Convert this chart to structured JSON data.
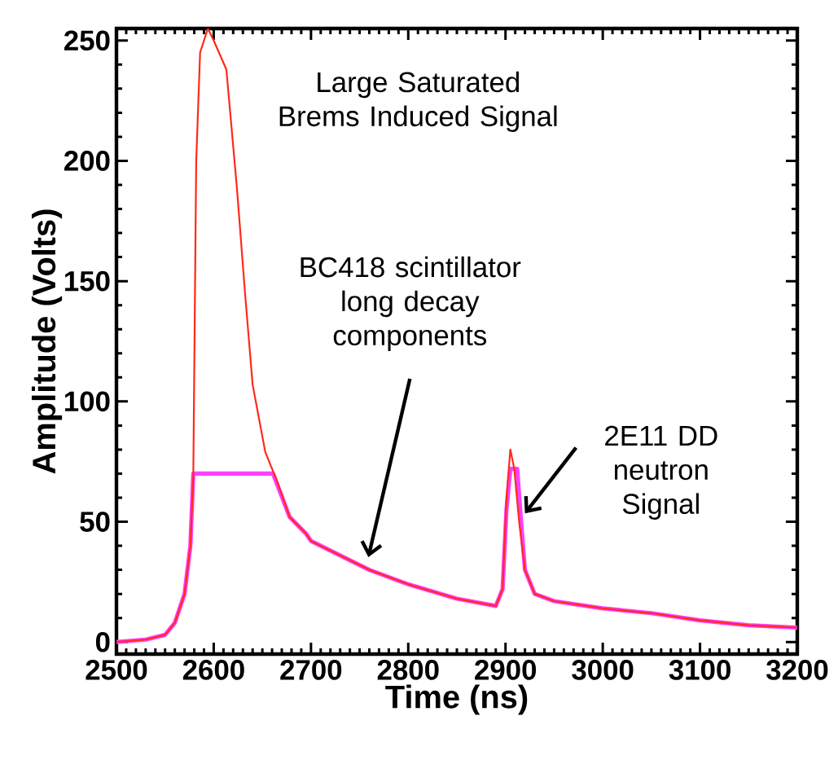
{
  "chart_data": {
    "type": "line",
    "xlabel": "Time (ns)",
    "ylabel": "Amplitude (Volts)",
    "xlim": [
      2500,
      3200
    ],
    "ylim": [
      -5,
      255
    ],
    "xticks": [
      2500,
      2600,
      2700,
      2800,
      2900,
      3000,
      3100,
      3200
    ],
    "yticks": [
      0,
      50,
      100,
      150,
      200,
      250
    ],
    "grid": false,
    "legend": false,
    "marker": "none",
    "line_style": "solid",
    "series": [
      {
        "color": "#ff2a1a",
        "x": [
          2500,
          2530,
          2550,
          2560,
          2570,
          2576,
          2579,
          2582,
          2586,
          2594,
          2600,
          2613,
          2624,
          2632,
          2640,
          2653,
          2665,
          2678,
          2695,
          2700,
          2740,
          2760,
          2800,
          2850,
          2890,
          2897,
          2901,
          2905,
          2909,
          2914,
          2920,
          2930,
          2950,
          3000,
          3050,
          3100,
          3150,
          3200
        ],
        "values": [
          0,
          1,
          3,
          8,
          20,
          40,
          69,
          200,
          245,
          255,
          250,
          238,
          188,
          146,
          107,
          79,
          67,
          52,
          45,
          42,
          34,
          30,
          24,
          18,
          15,
          22,
          60,
          80,
          72,
          50,
          30,
          20,
          17,
          14,
          12,
          9,
          7,
          6
        ]
      },
      {
        "color": "#ff40ff",
        "x": [
          2500,
          2530,
          2550,
          2560,
          2570,
          2576,
          2579,
          2661,
          2678,
          2695,
          2700,
          2740,
          2760,
          2800,
          2850,
          2890,
          2897,
          2901,
          2905,
          2912,
          2916,
          2920,
          2930,
          2950,
          3000,
          3050,
          3100,
          3150,
          3200
        ],
        "values": [
          0,
          1,
          3,
          8,
          20,
          40,
          70,
          70,
          52,
          45,
          42,
          34,
          30,
          24,
          18,
          15,
          22,
          55,
          72,
          72,
          50,
          30,
          20,
          17,
          14,
          12,
          9,
          7,
          6
        ]
      }
    ],
    "annotations": [
      "Large Saturated Brems Induced Signal",
      "BC418 scintillator long decay components",
      "2E11 DD neutron Signal"
    ]
  }
}
